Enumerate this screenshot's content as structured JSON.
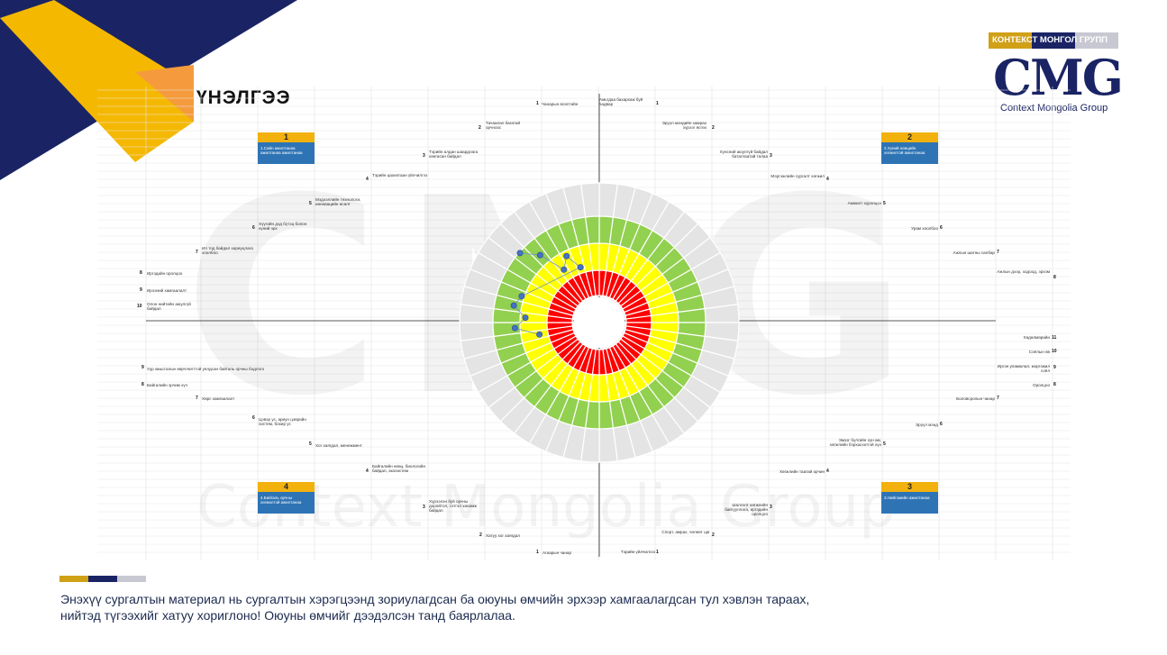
{
  "header": {
    "title": "ҮНЭЛГЭЭ"
  },
  "logo": {
    "tag": "КОНТЕКСТ МОНГОЛ ГРУПП",
    "main": "CMG",
    "sub": "Context Mongolia Group",
    "colors": [
      "#d0a017",
      "#1a2464",
      "#c8c8d2"
    ]
  },
  "watermark": {
    "big": "CMG",
    "text": "Context Mongolia Group"
  },
  "quadrants": [
    {
      "num": "1",
      "text": "1.Сайн ажилтанаа ажилтанаа ажилтанаа"
    },
    {
      "num": "2",
      "text": "2.Хүний нөөцийн хөгжилтэй ажилтанаа"
    },
    {
      "num": "3",
      "text": "3.Нийгэмийн ажилтанаа"
    },
    {
      "num": "4",
      "text": "4.Байгаль орчны хөгжилтэй ажилтанаа"
    }
  ],
  "labels": {
    "tl": [
      {
        "n": "1",
        "t": "Чанарын өсөлтийн"
      },
      {
        "n": "2",
        "t": "Тачаалал багатай орчноос"
      },
      {
        "n": "3",
        "t": "Тэрийн алдан шаардлага хангасан байдал"
      },
      {
        "n": "4",
        "t": "Тэрийн цахилгаан үйлчилгээ"
      },
      {
        "n": "5",
        "t": "Мэдээллийн технологи, инновацийн өсөлт"
      },
      {
        "n": "6",
        "t": "Хүүгийн дэд бүтэц болон хүний эрх"
      },
      {
        "n": "7",
        "t": "Ил тод байдал хариуцлага хоолбоо"
      },
      {
        "n": "8",
        "t": "Иргэдийн оролцоо"
      },
      {
        "n": "9",
        "t": "Ирээний хамгаалалт"
      },
      {
        "n": "10",
        "t": "Олон нийтийн аюулгүй байдал"
      }
    ],
    "tr": [
      {
        "n": "1",
        "t": "Амьтдаа бахархаж буй чадвар"
      },
      {
        "n": "2",
        "t": "Эрүүл мэндийн хамрах хүрээг өсгөх"
      },
      {
        "n": "3",
        "t": "Хүнсний аюулгүй байдал баталгаатай талаа"
      },
      {
        "n": "4",
        "t": "Мэргэжлийн сургалт хөгжил"
      },
      {
        "n": "5",
        "t": "Амжилт хүрэлцээ"
      },
      {
        "n": "6",
        "t": "Урам хоолбоо"
      },
      {
        "n": "7",
        "t": "Ажлын шатны салбар"
      },
      {
        "n": "8",
        "t": "Ажлын дээр, ходоод, эрхэм"
      }
    ],
    "bl": [
      {
        "n": "9",
        "t": "Уур амьсгалын өөрчлөлттэй уялдсан байгаль орчны бодлого"
      },
      {
        "n": "8",
        "t": "Байгалийн эрчим хүч"
      },
      {
        "n": "7",
        "t": "Хөрс хамгаалалт"
      },
      {
        "n": "6",
        "t": "Цэвэр ус, ариун цэврийн систем, бохир ус"
      },
      {
        "n": "5",
        "t": "Хог хаягдал, менежмент"
      },
      {
        "n": "4",
        "t": "Байгалийн нөөц, биологийн байдал, экосистем"
      },
      {
        "n": "3",
        "t": "Хүрээлэн буй орчны доройтол, сэтгэл ханамж байдал"
      },
      {
        "n": "2",
        "t": "Хатуу хог хаягдал"
      },
      {
        "n": "1",
        "t": "Агаарын чанар"
      }
    ],
    "br": [
      {
        "n": "11",
        "t": "Хөдөлмөрийн"
      },
      {
        "n": "10",
        "t": "Соёлын өв"
      },
      {
        "n": "9",
        "t": "Иргэн уламжлал, мэргэжил соёл"
      },
      {
        "n": "8",
        "t": "Оролцоо"
      },
      {
        "n": "7",
        "t": "Боловсролын чанар"
      },
      {
        "n": "6",
        "t": "Эрүүл мэнд"
      },
      {
        "n": "5",
        "t": "Эмзэг бүлгийн хүн ам, хөгжлийн бэрхшээлтэй хүн"
      },
      {
        "n": "4",
        "t": "Хөгжлийн таатай орчин"
      },
      {
        "n": "3",
        "t": "Шалгалт хөгжлийн байгууллага, иргэдийн оролцоо"
      },
      {
        "n": "2",
        "t": "Спорт, амрах, чөлөөт цаг"
      },
      {
        "n": "1",
        "t": "Тэрийн үйлчилгээ"
      }
    ]
  },
  "radial": {
    "segments": 48,
    "ring_colors": {
      "outer": "#e4e4e4",
      "green": "#92d050",
      "yellow": "#ffff00",
      "red": "#ff0000",
      "point": "#4472c4"
    },
    "scores": [
      {
        "segment": 41,
        "level": 3
      },
      {
        "segment": 42,
        "level": 2.4
      },
      {
        "segment": 43,
        "level": 1.4
      },
      {
        "segment": 44,
        "level": 1.8
      },
      {
        "segment": 45,
        "level": 1.2
      },
      {
        "segment": 38,
        "level": 2.1
      },
      {
        "segment": 37,
        "level": 2.3
      },
      {
        "segment": 36,
        "level": 1.8
      },
      {
        "segment": 35,
        "level": 2.2
      },
      {
        "segment": 34,
        "level": 1.3
      }
    ]
  },
  "footer": {
    "bar_colors": [
      "#d0a017",
      "#1a2464",
      "#c8c8d2"
    ],
    "text": "Энэхүү сургалтын материал нь сургалтын хэрэгцээнд зориулагдсан ба оюуны өмчийн эрхээр хамгаалагдсан тул хэвлэн тараах, нийтэд түгээхийг хатуу хориглоно! Оюуны өмчийг дээдэлсэн танд баярлалаа."
  }
}
